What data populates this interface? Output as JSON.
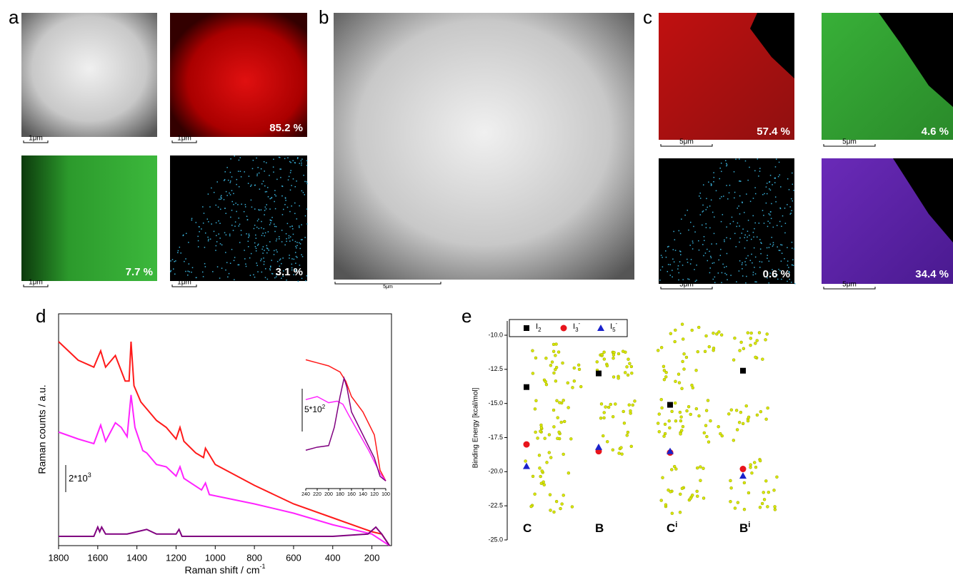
{
  "panels": {
    "a": {
      "label": "a",
      "images": [
        {
          "scale": "1μm"
        },
        {
          "scale": "1μm",
          "percent": "85.2 %"
        },
        {
          "scale": "1μm",
          "percent": "7.7 %"
        },
        {
          "scale": "1μm",
          "percent": "3.1 %"
        }
      ]
    },
    "b": {
      "label": "b",
      "scale": "5μm"
    },
    "c": {
      "label": "c",
      "images": [
        {
          "scale": "5μm",
          "percent": "57.4 %"
        },
        {
          "scale": "5μm",
          "percent": "4.6 %"
        },
        {
          "scale": "5μm",
          "percent": "0.6 %"
        },
        {
          "scale": "5μm",
          "percent": "34.4 %"
        }
      ]
    },
    "d": {
      "label": "d"
    },
    "e": {
      "label": "e"
    }
  },
  "chart_data": [
    {
      "type": "line",
      "xlabel": "Raman shift / cm",
      "xlabel_sup": "-1",
      "ylabel": "Raman counts / a.u.",
      "scale_bar": "2*10",
      "scale_bar_sup": "3",
      "xlim": [
        1800,
        100
      ],
      "ylim": [
        0,
        100
      ],
      "xticks": [
        1800,
        1600,
        1400,
        1200,
        1000,
        800,
        600,
        400,
        200
      ],
      "series": [
        {
          "color": "#ff1a1a",
          "x": [
            1800,
            1700,
            1620,
            1585,
            1560,
            1510,
            1460,
            1440,
            1430,
            1415,
            1380,
            1340,
            1300,
            1250,
            1200,
            1180,
            1160,
            1100,
            1060,
            1050,
            1000,
            800,
            600,
            400,
            200,
            150,
            110
          ],
          "values": [
            88,
            80,
            77,
            84,
            77,
            82,
            71,
            71,
            88,
            69,
            62,
            58,
            54,
            51,
            46,
            51,
            45,
            40,
            38,
            42,
            35,
            26,
            18,
            12,
            6,
            5,
            0
          ]
        },
        {
          "color": "#ff22ff",
          "x": [
            1800,
            1700,
            1620,
            1585,
            1560,
            1510,
            1480,
            1450,
            1430,
            1410,
            1370,
            1350,
            1300,
            1250,
            1200,
            1180,
            1160,
            1070,
            1050,
            1030,
            800,
            600,
            400,
            200,
            110
          ],
          "values": [
            49,
            46,
            44,
            52,
            45,
            53,
            51,
            47,
            65,
            51,
            41,
            40,
            35,
            34,
            30,
            34,
            29,
            24,
            27,
            22,
            18,
            14,
            9,
            5,
            0
          ]
        },
        {
          "color": "#800080",
          "x": [
            1800,
            1620,
            1600,
            1590,
            1580,
            1560,
            1450,
            1350,
            1300,
            1200,
            1185,
            1170,
            800,
            400,
            220,
            180,
            150,
            110
          ],
          "values": [
            4,
            4,
            8,
            6,
            8,
            5,
            5,
            7,
            5,
            5,
            7,
            4,
            4,
            4,
            5,
            8,
            5,
            0
          ]
        }
      ]
    },
    {
      "type": "line",
      "scale_bar": "5*10",
      "scale_bar_sup": "2",
      "xlim": [
        240,
        100
      ],
      "ylim": [
        0,
        100
      ],
      "xticks": [
        240,
        220,
        200,
        180,
        160,
        140,
        120,
        100
      ],
      "series": [
        {
          "color": "#ff1a1a",
          "x": [
            240,
            220,
            200,
            180,
            170,
            160,
            140,
            120,
            110,
            100
          ],
          "values": [
            84,
            82,
            80,
            76,
            70,
            60,
            50,
            35,
            12,
            5
          ]
        },
        {
          "color": "#ff22ff",
          "x": [
            240,
            220,
            200,
            185,
            175,
            165,
            150,
            130,
            110,
            100
          ],
          "values": [
            58,
            60,
            56,
            57,
            55,
            48,
            38,
            25,
            10,
            5
          ]
        },
        {
          "color": "#800080",
          "x": [
            240,
            220,
            200,
            190,
            180,
            173,
            168,
            160,
            140,
            120,
            110,
            100
          ],
          "values": [
            25,
            27,
            28,
            40,
            60,
            72,
            66,
            50,
            35,
            20,
            8,
            5
          ]
        }
      ]
    },
    {
      "type": "scatter",
      "ylabel": "Binding Energy [kcal/mol]",
      "categories": [
        {
          "label": "C"
        },
        {
          "label": "B"
        },
        {
          "label": "C",
          "sup": "i"
        },
        {
          "label": "B",
          "sup": "i"
        }
      ],
      "ylim": [
        -25,
        -10
      ],
      "yticks": [
        {
          "value": -10,
          "label": "-10.0"
        },
        {
          "value": -12.5,
          "label": "-12.5"
        },
        {
          "value": -15,
          "label": "-15.0"
        },
        {
          "value": -17.5,
          "label": "-17.5"
        },
        {
          "value": -20,
          "label": "-20.0"
        },
        {
          "value": -22.5,
          "label": "-22.5"
        },
        {
          "value": -25,
          "label": "-25.0"
        }
      ],
      "series": [
        {
          "name": "I",
          "sub": "2",
          "color": "#000000",
          "marker": "square",
          "values": [
            -13.8,
            -12.8,
            -15.1,
            -12.6
          ]
        },
        {
          "name": "I",
          "sub": "3",
          "sup": "-",
          "color": "#e8141c",
          "marker": "circle",
          "values": [
            -18.0,
            -18.5,
            -18.6,
            -19.8
          ]
        },
        {
          "name": "I",
          "sub": "5",
          "sup": "-",
          "color": "#1a22cc",
          "marker": "triangle",
          "values": [
            -19.6,
            -18.2,
            -18.5,
            -20.3
          ]
        }
      ]
    }
  ]
}
